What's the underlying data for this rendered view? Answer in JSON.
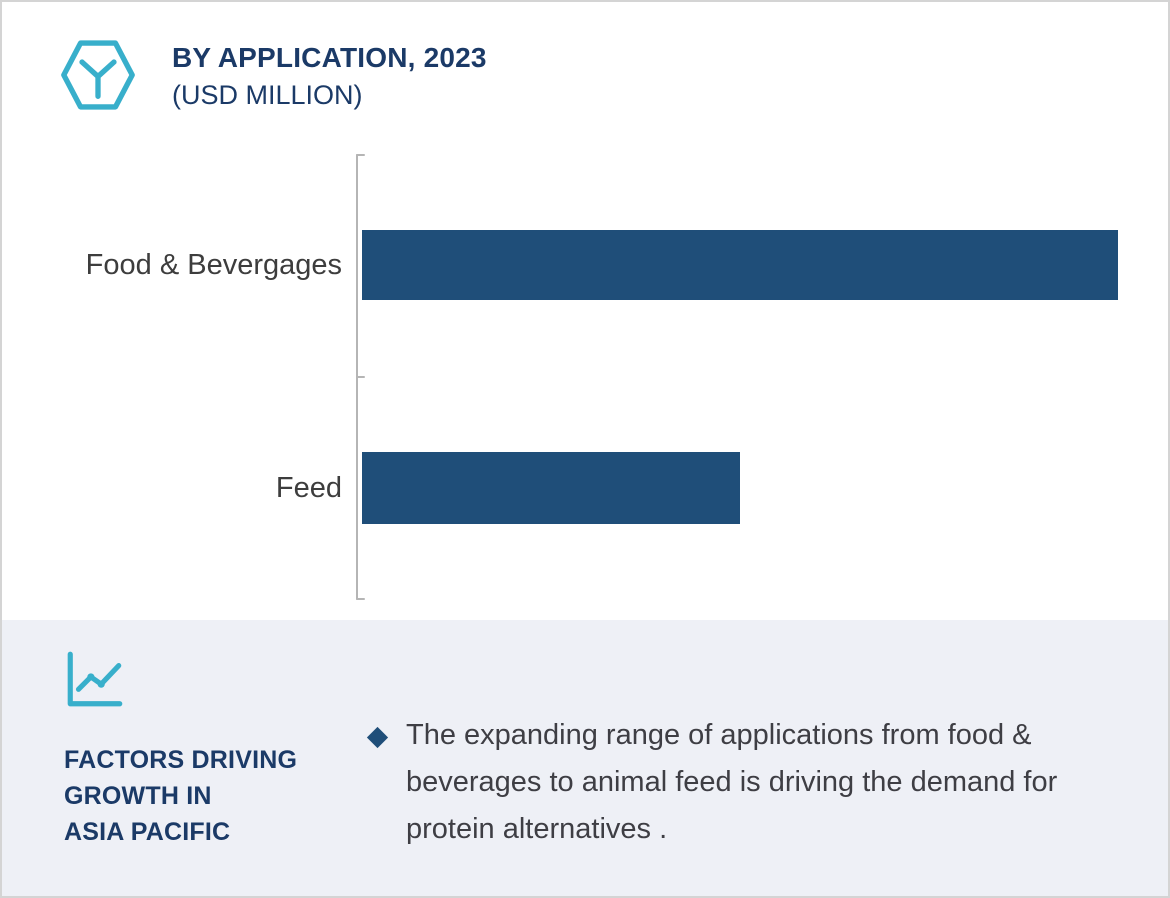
{
  "header": {
    "title": "BY APPLICATION, 2023",
    "subtitle": "(USD MILLION)",
    "icon": "hexagon-y-icon"
  },
  "chart_data": {
    "type": "bar",
    "orientation": "horizontal",
    "title": "BY APPLICATION, 2023",
    "subtitle": "(USD MILLION)",
    "categories": [
      "Food & Bevergages",
      "Feed"
    ],
    "values": [
      100,
      50
    ],
    "value_note": "x-axis is unlabeled in the source; values are relative bar lengths as % of the longest bar",
    "xlabel": "",
    "ylabel": "",
    "bar_color": "#1f4e79",
    "axis_color": "#b5b5b5",
    "grid": false,
    "legend": "none"
  },
  "footer": {
    "icon": "line-chart-trend-icon",
    "heading": "FACTORS DRIVING GROWTH IN ASIA PACIFIC",
    "heading_lines": [
      "FACTORS DRIVING",
      "GROWTH IN",
      "ASIA PACIFIC"
    ],
    "bullet_icon": "diamond-bullet-icon",
    "bullet_text": "The expanding range of applications from food & beverages to animal feed is driving the demand for protein alternatives .",
    "background_color": "#eef0f6"
  },
  "colors": {
    "teal_accent": "#38afcb",
    "navy_text": "#1b3a67",
    "bar_blue": "#1f4e79",
    "body_text": "#3e3e44"
  }
}
